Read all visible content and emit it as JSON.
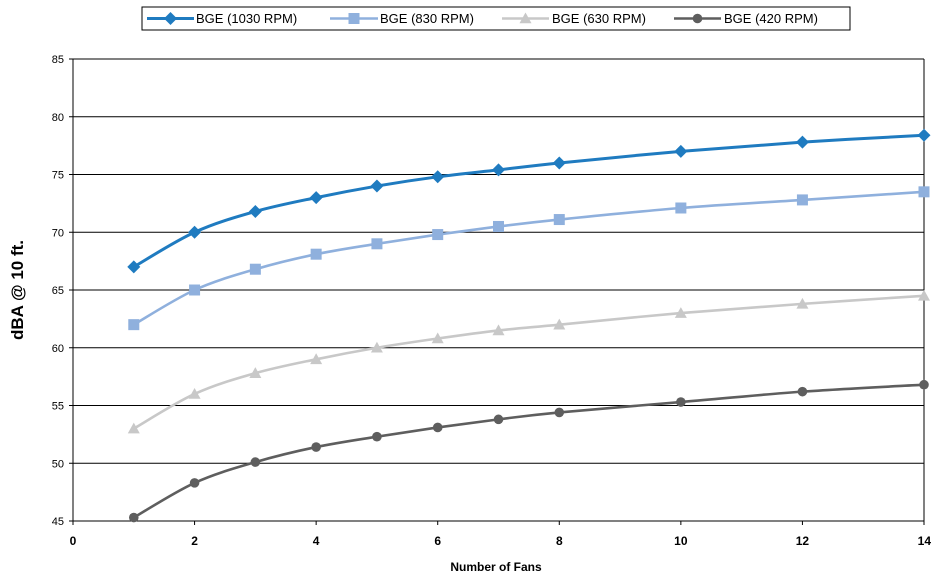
{
  "chart_data": {
    "type": "line",
    "title": "",
    "xlabel": "Number of Fans",
    "ylabel": "dBA @ 10 ft.",
    "xlim": [
      0,
      14
    ],
    "ylim": [
      45,
      85
    ],
    "xticks": [
      0,
      2,
      4,
      6,
      8,
      10,
      12,
      14
    ],
    "yticks": [
      45,
      50,
      55,
      60,
      65,
      70,
      75,
      80,
      85
    ],
    "grid": "horizontal",
    "legend_position": "top",
    "x": [
      1,
      2,
      3,
      4,
      5,
      6,
      7,
      8,
      10,
      12,
      14
    ],
    "series": [
      {
        "name": "BGE (1030 RPM)",
        "color": "#1F7BC0",
        "marker": "diamond",
        "values": [
          67.0,
          70.0,
          71.8,
          73.0,
          74.0,
          74.8,
          75.4,
          76.0,
          77.0,
          77.8,
          78.4
        ]
      },
      {
        "name": "BGE (830 RPM)",
        "color": "#8FB0DD",
        "marker": "square",
        "values": [
          62.0,
          65.0,
          66.8,
          68.1,
          69.0,
          69.8,
          70.5,
          71.1,
          72.1,
          72.8,
          73.5
        ]
      },
      {
        "name": "BGE (630 RPM)",
        "color": "#C8C8C8",
        "marker": "triangle",
        "values": [
          53.0,
          56.0,
          57.8,
          59.0,
          60.0,
          60.8,
          61.5,
          62.0,
          63.0,
          63.8,
          64.5
        ]
      },
      {
        "name": "BGE (420 RPM)",
        "color": "#5E5E5E",
        "marker": "circle",
        "values": [
          45.3,
          48.3,
          50.1,
          51.4,
          52.3,
          53.1,
          53.8,
          54.4,
          55.3,
          56.2,
          56.8
        ]
      }
    ]
  }
}
